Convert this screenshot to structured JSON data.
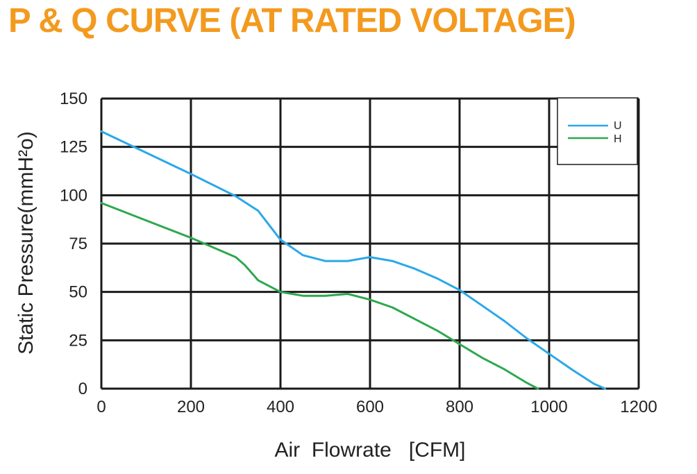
{
  "title": "P & Q CURVE (AT RATED VOLTAGE)",
  "colors": {
    "title": "#F39A1E",
    "grid": "#1a1a1a",
    "text": "#222222"
  },
  "chart_data": {
    "type": "line",
    "title": "P & Q CURVE (AT RATED VOLTAGE)",
    "xlabel": "Air  Flowrate   [CFM]",
    "ylabel": "Static Pressure(mmH²o)",
    "xlim": [
      0,
      1200
    ],
    "ylim": [
      0,
      150
    ],
    "x_ticks": [
      0,
      200,
      400,
      600,
      800,
      1000,
      1200
    ],
    "x_tick_labels": [
      "0",
      "200",
      "400",
      "600",
      "800",
      "1000",
      "1200"
    ],
    "y_ticks": [
      0,
      25,
      50,
      75,
      100,
      125,
      150
    ],
    "y_tick_labels": [
      "0",
      "25",
      "50",
      "75",
      "100",
      "125",
      "150"
    ],
    "grid": true,
    "legend_position": "top-right",
    "series": [
      {
        "name": "U",
        "color": "#2AA8E8",
        "x": [
          0,
          100,
          200,
          300,
          350,
          370,
          400,
          450,
          500,
          550,
          600,
          650,
          700,
          750,
          800,
          850,
          900,
          950,
          1000,
          1050,
          1100,
          1125
        ],
        "y": [
          133,
          122,
          111,
          99.5,
          92,
          86,
          77,
          69,
          66,
          66,
          68,
          66,
          62,
          57,
          51,
          43,
          35,
          26,
          18,
          10,
          2.5,
          0
        ]
      },
      {
        "name": "H",
        "color": "#2DA84E",
        "x": [
          0,
          100,
          200,
          250,
          300,
          320,
          350,
          400,
          450,
          500,
          550,
          600,
          650,
          700,
          750,
          800,
          850,
          900,
          950,
          975
        ],
        "y": [
          96,
          87,
          78,
          73,
          68,
          64,
          56,
          50,
          48,
          48,
          49,
          46,
          42,
          36,
          30,
          23,
          16,
          10,
          3,
          0
        ]
      }
    ]
  }
}
